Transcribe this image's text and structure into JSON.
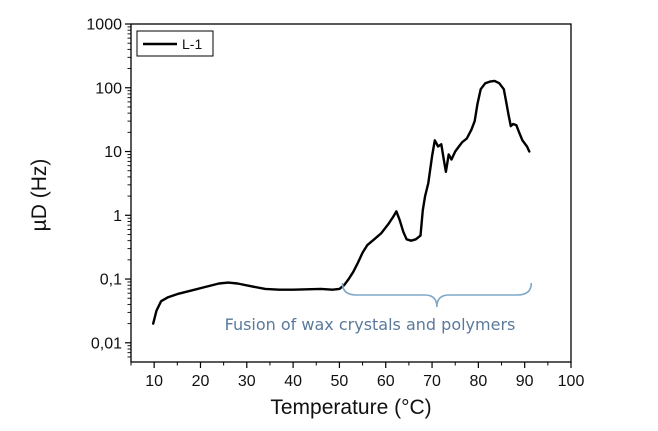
{
  "chart_data": {
    "type": "line",
    "xlabel": "Temperature (°C)",
    "ylabel": "µD (Hz)",
    "xlim": [
      5,
      100
    ],
    "ylim": [
      0.005,
      1000
    ],
    "yscale": "log",
    "x_ticks": [
      "10",
      "20",
      "30",
      "40",
      "50",
      "60",
      "70",
      "80",
      "90",
      "100"
    ],
    "y_ticks": [
      "0,01",
      "0,1",
      "1",
      "10",
      "100",
      "1000"
    ],
    "grid": false,
    "legend": {
      "position": "top-left",
      "entries": [
        "L-1"
      ]
    },
    "series": [
      {
        "name": "L-1",
        "color": "#000000",
        "x": [
          9.8,
          10.5,
          11.5,
          13,
          15,
          18,
          21,
          24,
          26,
          28,
          31,
          34,
          37,
          40,
          43,
          46,
          48.5,
          50,
          51,
          52,
          53,
          54,
          55,
          56,
          57.5,
          59,
          60.5,
          61.5,
          62.3,
          63,
          63.8,
          64.5,
          65.5,
          66.5,
          67.5,
          68,
          68.5,
          69.2,
          70,
          70.6,
          71.3,
          72,
          72.6,
          73,
          73.6,
          74.2,
          75,
          75.8,
          76.5,
          77.5,
          78.5,
          79.2,
          79.8,
          80.5,
          81.5,
          82.5,
          83.5,
          84.5,
          85.5,
          86,
          86.5,
          87,
          87.5,
          88.2,
          88.8,
          89.5,
          90.5,
          91
        ],
        "y": [
          0.02,
          0.032,
          0.045,
          0.052,
          0.058,
          0.066,
          0.075,
          0.085,
          0.088,
          0.085,
          0.077,
          0.07,
          0.068,
          0.068,
          0.069,
          0.07,
          0.068,
          0.07,
          0.08,
          0.1,
          0.13,
          0.18,
          0.26,
          0.34,
          0.42,
          0.52,
          0.72,
          0.92,
          1.15,
          0.85,
          0.55,
          0.42,
          0.4,
          0.42,
          0.48,
          1.2,
          2.0,
          3.2,
          8.5,
          15,
          12,
          13,
          7,
          4.8,
          9,
          7.5,
          10,
          12,
          14,
          16,
          22,
          30,
          55,
          95,
          118,
          125,
          128,
          118,
          95,
          60,
          38,
          25,
          27,
          26,
          20,
          15,
          12,
          10
        ]
      }
    ],
    "annotations": [
      {
        "text": "Fusion of wax crystals and polymers",
        "x_range": [
          50,
          91
        ],
        "color": "#5a7a9b",
        "brace_color": "#7fa8c8"
      }
    ]
  }
}
